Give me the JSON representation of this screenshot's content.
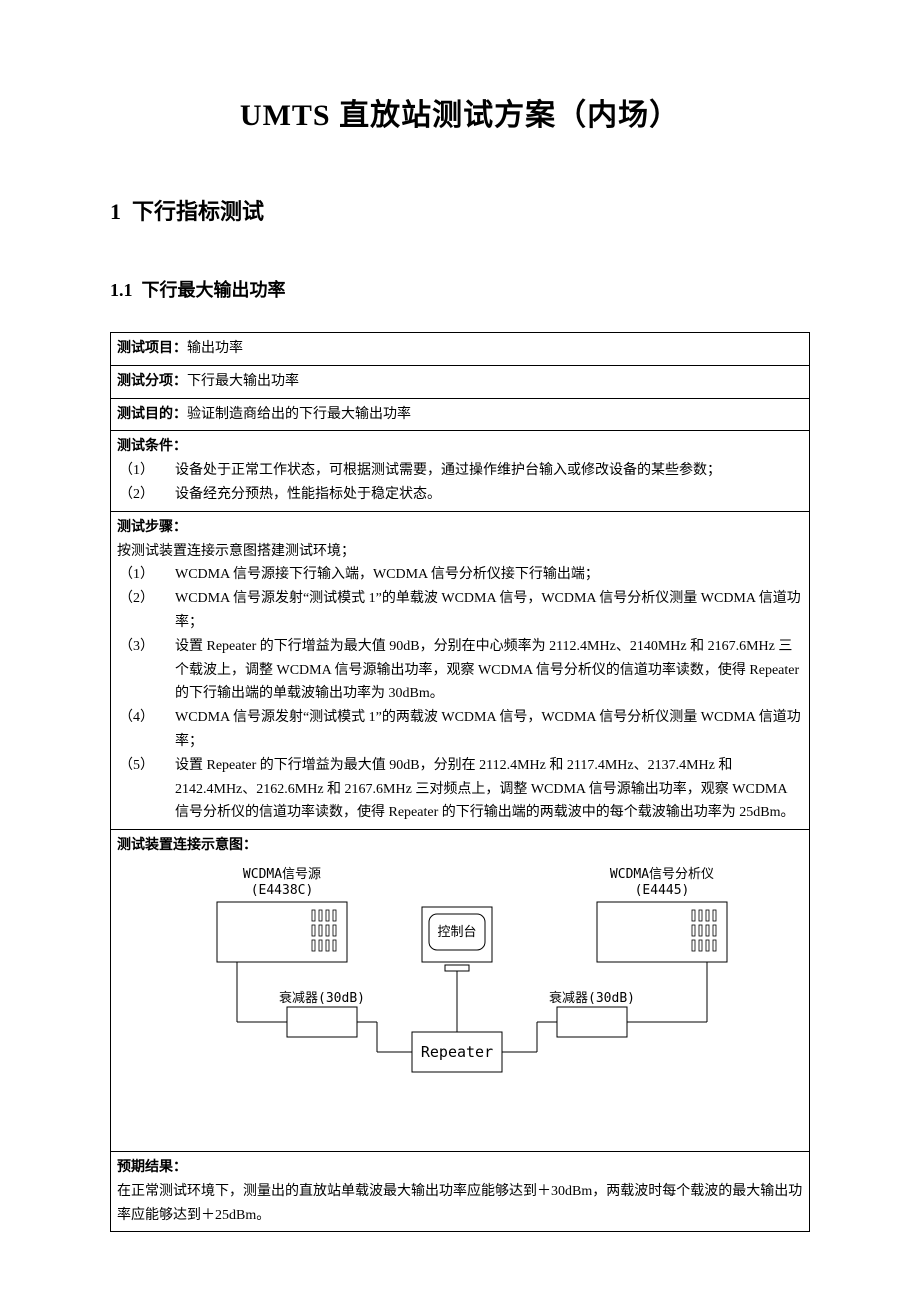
{
  "title": "UMTS 直放站测试方案（内场）",
  "section1": {
    "num": "1",
    "title": "下行指标测试"
  },
  "section11": {
    "num": "1.1",
    "title": "下行最大输出功率"
  },
  "rows": {
    "item_label": "测试项目：",
    "item_value": "输出功率",
    "sub_label": "测试分项：",
    "sub_value": "下行最大输出功率",
    "purpose_label": "测试目的：",
    "purpose_value": "验证制造商给出的下行最大输出功率",
    "cond_label": "测试条件：",
    "cond": [
      {
        "n": "（1）",
        "t": "设备处于正常工作状态，可根据测试需要，通过操作维护台输入或修改设备的某些参数；"
      },
      {
        "n": "（2）",
        "t": "设备经充分预热，性能指标处于稳定状态。"
      }
    ],
    "steps_label": "测试步骤：",
    "steps_intro": "按测试装置连接示意图搭建测试环境；",
    "steps": [
      {
        "n": "（1）",
        "t": "WCDMA 信号源接下行输入端，WCDMA 信号分析仪接下行输出端；"
      },
      {
        "n": "（2）",
        "t": "WCDMA 信号源发射“测试模式 1”的单载波 WCDMA 信号，WCDMA 信号分析仪测量 WCDMA 信道功率；"
      },
      {
        "n": "（3）",
        "t": "设置 Repeater 的下行增益为最大值 90dB，分别在中心频率为 2112.4MHz、2140MHz 和 2167.6MHz 三个载波上，调整 WCDMA 信号源输出功率，观察 WCDMA 信号分析仪的信道功率读数，使得 Repeater 的下行输出端的单载波输出功率为 30dBm。"
      },
      {
        "n": "（4）",
        "t": "WCDMA 信号源发射“测试模式 1”的两载波 WCDMA 信号，WCDMA 信号分析仪测量 WCDMA 信道功率；"
      },
      {
        "n": "（5）",
        "t": "设置 Repeater 的下行增益为最大值 90dB，分别在 2112.4MHz 和 2117.4MHz、2137.4MHz 和 2142.4MHz、2162.6MHz 和 2167.6MHz 三对频点上，调整 WCDMA 信号源输出功率，观察 WCDMA 信号分析仪的信道功率读数，使得 Repeater 的下行输出端的两载波中的每个载波输出功率为 25dBm。"
      }
    ],
    "diagram_label": "测试装置连接示意图：",
    "expect_label": "预期结果：",
    "expect_value": "在正常测试环境下，测量出的直放站单载波最大输出功率应能够达到＋30dBm，两载波时每个载波的最大输出功率应能够达到＋25dBm。"
  },
  "diagram": {
    "source_label_1": "WCDMA信号源",
    "source_label_2": "(E4438C)",
    "analyzer_label_1": "WCDMA信号分析仪",
    "analyzer_label_2": "(E4445)",
    "console_label": "控制台",
    "repeater_label": "Repeater",
    "atten_left": "衰减器(30dB)",
    "atten_right": "衰减器(30dB)",
    "stroke": "#000000",
    "bg": "#ffffff",
    "font_family_mono": "SimSun, monospace",
    "font_size_label": 13,
    "font_size_repeater": 15
  }
}
